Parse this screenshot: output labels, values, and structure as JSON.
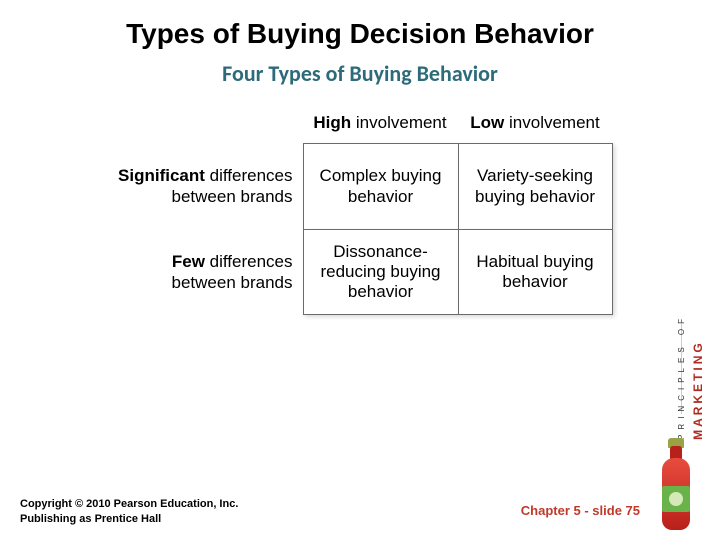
{
  "title": "Types of Buying Decision Behavior",
  "subtitle": "Four Types of Buying Behavior",
  "matrix": {
    "col_headers": [
      {
        "bold": "High",
        "rest": " involvement"
      },
      {
        "bold": "Low",
        "rest": " involvement"
      }
    ],
    "row_headers": [
      {
        "bold": "Significant",
        "line1_rest": " differences",
        "line2": "between brands"
      },
      {
        "bold": "Few",
        "line1_rest": " differences",
        "line2": "between brands"
      }
    ],
    "cells": [
      [
        "Complex buying behavior",
        "Variety-seeking buying behavior"
      ],
      [
        "Dissonance-reducing buying behavior",
        "Habitual buying behavior"
      ]
    ],
    "border_color": "#6b6b6b",
    "cell_fontsize": 17,
    "header_fontsize": 17
  },
  "footer": {
    "copyright_line1": "Copyright © 2010 Pearson Education, Inc.",
    "copyright_line2": "Publishing as Prentice Hall",
    "chapter_ref": "Chapter 5 - slide 75"
  },
  "brand": {
    "tagline": "PRINCIPLES OF",
    "name": "MARKETING",
    "accent_color": "#b02a1f"
  },
  "colors": {
    "title_color": "#000000",
    "subtitle_color": "#2d6b7a",
    "footer_right_color": "#c0392b",
    "background": "#ffffff"
  }
}
